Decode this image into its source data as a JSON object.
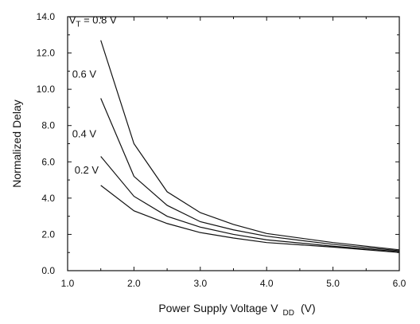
{
  "chart_data": {
    "type": "line",
    "title": "",
    "xlabel": "Power Supply Voltage V",
    "xlabel_subscript": "DD",
    "xlabel_unit": "(V)",
    "ylabel": "Normalized Delay",
    "xlim": [
      1.0,
      6.0
    ],
    "ylim": [
      0.0,
      14.0
    ],
    "x_ticks": [
      "1.0",
      "2.0",
      "3.0",
      "4.0",
      "5.0",
      "6.0"
    ],
    "y_ticks": [
      "0.0",
      "2.0",
      "4.0",
      "6.0",
      "8.0",
      "10.0",
      "12.0",
      "14.0"
    ],
    "x_tick_values": [
      1.0,
      2.0,
      3.0,
      4.0,
      5.0,
      6.0
    ],
    "y_tick_values": [
      0.0,
      2.0,
      4.0,
      6.0,
      8.0,
      10.0,
      12.0,
      14.0
    ],
    "grid": false,
    "series": [
      {
        "label_prefix": "V",
        "label_subscript": "T",
        "label": " = 0.8 V",
        "x": [
          1.5,
          2.0,
          2.5,
          3.0,
          3.5,
          4.0,
          5.0,
          6.0
        ],
        "values": [
          12.7,
          7.0,
          4.35,
          3.2,
          2.55,
          2.05,
          1.55,
          1.15
        ]
      },
      {
        "label": "0.6 V",
        "x": [
          1.5,
          2.0,
          2.5,
          3.0,
          3.5,
          4.0,
          5.0,
          6.0
        ],
        "values": [
          9.5,
          5.2,
          3.6,
          2.7,
          2.25,
          1.9,
          1.45,
          1.1
        ]
      },
      {
        "label": "0.4 V",
        "x": [
          1.5,
          2.0,
          2.5,
          3.0,
          3.5,
          4.0,
          5.0,
          6.0
        ],
        "values": [
          6.3,
          4.1,
          3.0,
          2.4,
          2.0,
          1.7,
          1.35,
          1.05
        ]
      },
      {
        "label": "0.2 V",
        "x": [
          1.5,
          2.0,
          2.5,
          3.0,
          3.5,
          4.0,
          5.0,
          6.0
        ],
        "values": [
          4.7,
          3.3,
          2.6,
          2.1,
          1.8,
          1.55,
          1.3,
          1.0
        ]
      }
    ]
  }
}
